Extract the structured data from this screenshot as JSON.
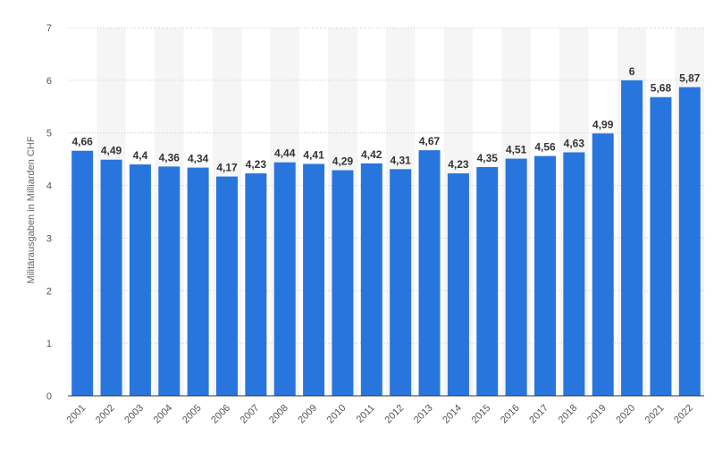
{
  "chart_data": {
    "type": "bar",
    "ylabel": "Militärausgaben in Milliarden CHF",
    "xlabel": "",
    "ylim": [
      0,
      7
    ],
    "yticks": [
      0,
      1,
      2,
      3,
      4,
      5,
      6,
      7
    ],
    "grid": true,
    "categories": [
      "2001",
      "2002",
      "2003",
      "2004",
      "2005",
      "2006",
      "2007",
      "2008",
      "2009",
      "2010",
      "2011",
      "2012",
      "2013",
      "2014",
      "2015",
      "2016",
      "2017",
      "2018",
      "2019",
      "2020",
      "2021",
      "2022"
    ],
    "values": [
      4.66,
      4.49,
      4.4,
      4.36,
      4.34,
      4.17,
      4.23,
      4.44,
      4.41,
      4.29,
      4.42,
      4.31,
      4.67,
      4.23,
      4.35,
      4.51,
      4.56,
      4.63,
      4.99,
      6,
      5.68,
      5.87
    ],
    "value_labels": [
      "4,66",
      "4,49",
      "4,4",
      "4,36",
      "4,34",
      "4,17",
      "4,23",
      "4,44",
      "4,41",
      "4,29",
      "4,42",
      "4,31",
      "4,67",
      "4,23",
      "4,35",
      "4,51",
      "4,56",
      "4,63",
      "4,99",
      "6",
      "5,68",
      "5,87"
    ],
    "colors": {
      "bar": "#2876dd",
      "band": "#f5f5f5",
      "grid": "#cccccc",
      "baseline": "#333333"
    }
  }
}
